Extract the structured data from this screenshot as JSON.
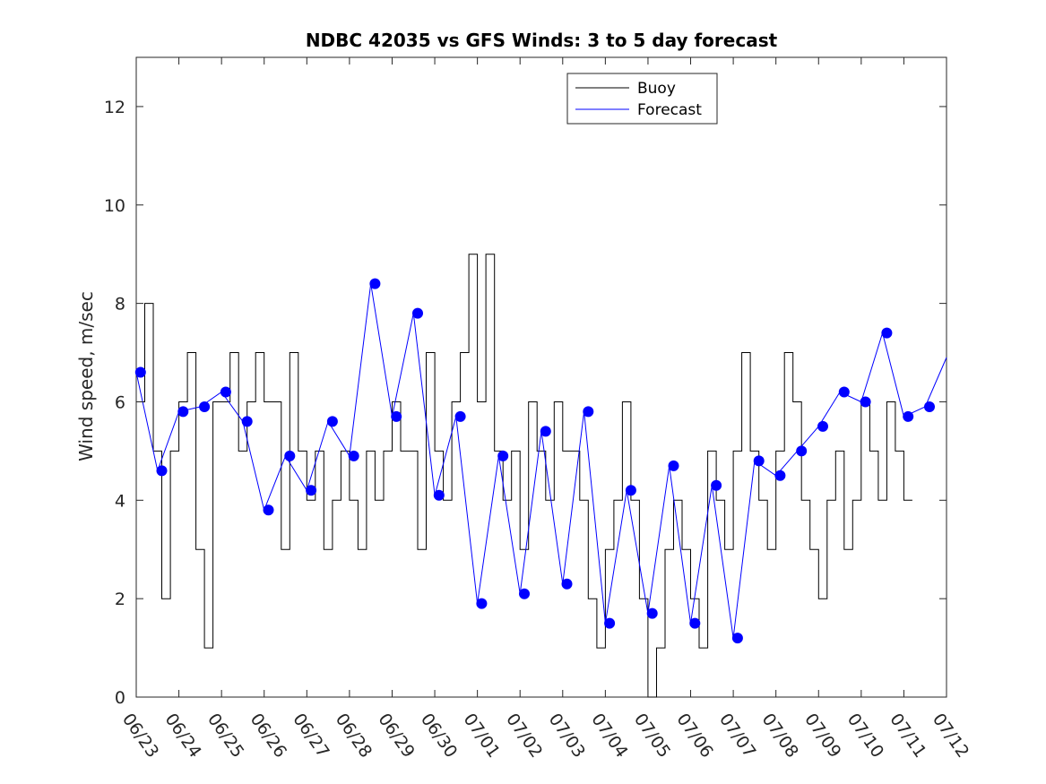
{
  "chart_data": {
    "type": "line",
    "title": "NDBC 42035 vs GFS Winds: 3 to 5 day forecast",
    "xlabel": "",
    "ylabel": "Wind speed, m/sec",
    "ylim": [
      0,
      13
    ],
    "yticks": [
      0,
      2,
      4,
      6,
      8,
      10,
      12
    ],
    "xlim": [
      "06/23",
      "07/12"
    ],
    "xtick_labels": [
      "06/23",
      "06/24",
      "06/25",
      "06/26",
      "06/27",
      "06/28",
      "06/29",
      "06/30",
      "07/01",
      "07/02",
      "07/03",
      "07/04",
      "07/05",
      "07/06",
      "07/07",
      "07/08",
      "07/09",
      "07/10",
      "07/11",
      "07/12"
    ],
    "grid": false,
    "legend": {
      "position": "top-center",
      "entries": [
        "Buoy",
        "Forecast"
      ]
    },
    "colors": {
      "buoy": "#000000",
      "forecast": "#0000ff",
      "axes": "#262626"
    },
    "series": [
      {
        "name": "Buoy",
        "style": "stepped line",
        "x": [
          "06/23",
          "06/23.2",
          "06/23.4",
          "06/23.6",
          "06/23.8",
          "06/24",
          "06/24.2",
          "06/24.4",
          "06/24.6",
          "06/24.8",
          "06/25",
          "06/25.2",
          "06/25.4",
          "06/25.6",
          "06/25.8",
          "06/26",
          "06/26.2",
          "06/26.4",
          "06/26.6",
          "06/26.8",
          "06/27",
          "06/27.2",
          "06/27.4",
          "06/27.6",
          "06/27.8",
          "06/28",
          "06/28.2",
          "06/28.4",
          "06/28.6",
          "06/28.8",
          "06/29",
          "06/29.2",
          "06/29.4",
          "06/29.6",
          "06/29.8",
          "06/30",
          "06/30.2",
          "06/30.4",
          "06/30.6",
          "06/30.8",
          "07/01",
          "07/01.2",
          "07/01.4",
          "07/01.6",
          "07/01.8",
          "07/02",
          "07/02.2",
          "07/02.4",
          "07/02.6",
          "07/02.8",
          "07/03",
          "07/03.2",
          "07/03.4",
          "07/03.6",
          "07/03.8",
          "07/04",
          "07/04.2",
          "07/04.4",
          "07/04.6",
          "07/04.8",
          "07/05",
          "07/05.2",
          "07/05.4",
          "07/05.6",
          "07/05.8",
          "07/06",
          "07/06.2",
          "07/06.4",
          "07/06.6",
          "07/06.8",
          "07/07",
          "07/07.2",
          "07/07.4",
          "07/07.6",
          "07/07.8",
          "07/08",
          "07/08.2",
          "07/08.4",
          "07/08.6",
          "07/08.8",
          "07/09",
          "07/09.2",
          "07/09.4",
          "07/09.6",
          "07/09.8",
          "07/10",
          "07/10.2",
          "07/10.4",
          "07/10.6",
          "07/10.8",
          "07/11"
        ],
        "values": [
          6,
          8,
          5,
          2,
          5,
          6,
          7,
          3,
          1,
          6,
          6,
          7,
          5,
          6,
          7,
          6,
          6,
          3,
          7,
          5,
          4,
          5,
          3,
          4,
          5,
          4,
          3,
          5,
          4,
          5,
          6,
          5,
          5,
          3,
          7,
          5,
          4,
          6,
          7,
          9,
          6,
          9,
          5,
          4,
          5,
          3,
          6,
          5,
          4,
          6,
          5,
          5,
          4,
          2,
          1,
          3,
          4,
          6,
          4,
          2,
          0,
          1,
          3,
          4,
          3,
          2,
          1,
          5,
          4,
          3,
          5,
          7,
          5,
          4,
          3,
          5,
          7,
          6,
          4,
          3,
          2,
          4,
          5,
          3,
          4,
          6,
          5,
          4,
          6,
          5,
          4
        ]
      },
      {
        "name": "Forecast",
        "style": "thin lines, several overlapping forecast runs",
        "x": [
          "06/23",
          "06/23.5",
          "06/24",
          "06/24.5",
          "06/25",
          "06/25.5",
          "06/26",
          "06/26.5",
          "06/27",
          "06/27.5",
          "06/28",
          "06/28.5",
          "06/29",
          "06/29.5",
          "06/30",
          "06/30.5",
          "07/01",
          "07/01.5",
          "07/02",
          "07/02.5",
          "07/03",
          "07/03.5",
          "07/04",
          "07/04.5",
          "07/05",
          "07/05.5",
          "07/06",
          "07/06.5",
          "07/07",
          "07/07.5",
          "07/08",
          "07/08.5",
          "07/09",
          "07/09.5",
          "07/10",
          "07/10.5",
          "07/11",
          "07/11.5",
          "07/12"
        ],
        "values": [
          6.6,
          4.6,
          5.8,
          5.9,
          6.2,
          5.6,
          3.8,
          4.9,
          4.2,
          5.6,
          4.9,
          8.4,
          5.7,
          7.8,
          4.1,
          5.7,
          1.9,
          4.9,
          2.1,
          5.4,
          2.3,
          5.8,
          1.5,
          4.2,
          1.7,
          4.7,
          1.5,
          4.3,
          1.2,
          4.8,
          4.5,
          5.0,
          5.5,
          6.2,
          6.0,
          7.4,
          5.7,
          5.9,
          6.9
        ]
      },
      {
        "name": "",
        "style": "markers",
        "x": [
          "06/23.1",
          "06/23.6",
          "06/24.1",
          "06/24.6",
          "06/25.1",
          "06/25.6",
          "06/26.1",
          "06/26.6",
          "06/27.1",
          "06/27.6",
          "06/28.1",
          "06/28.6",
          "06/29.1",
          "06/29.6",
          "06/30.1",
          "06/30.6",
          "07/01.1",
          "07/01.6",
          "07/02.1",
          "07/02.6",
          "07/03.1",
          "07/03.6",
          "07/04.1",
          "07/04.6",
          "07/05.1",
          "07/05.6",
          "07/06.1",
          "07/06.6",
          "07/07.1",
          "07/07.6",
          "07/08.1",
          "07/08.6",
          "07/09.1",
          "07/09.6",
          "07/10.1",
          "07/10.6",
          "07/11.1",
          "07/11.6"
        ],
        "values": [
          6.6,
          4.6,
          5.8,
          5.9,
          6.2,
          5.6,
          3.8,
          4.9,
          4.2,
          5.6,
          4.9,
          8.4,
          5.7,
          7.8,
          4.1,
          5.7,
          1.9,
          4.9,
          2.1,
          5.4,
          2.3,
          5.8,
          1.5,
          4.2,
          1.7,
          4.7,
          1.5,
          4.3,
          1.2,
          4.8,
          4.5,
          5.0,
          5.5,
          6.2,
          6.0,
          7.4,
          5.7,
          5.9
        ]
      }
    ]
  }
}
